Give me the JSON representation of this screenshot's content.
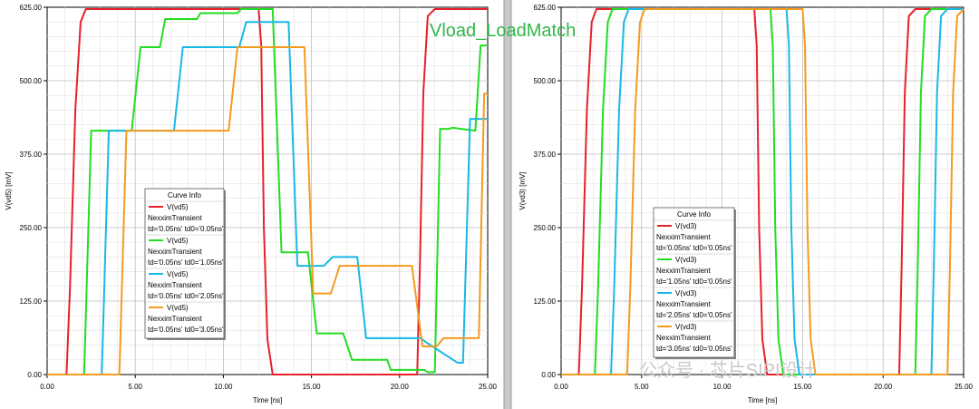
{
  "overlay_text": "Vload_LoadMatch",
  "watermark": "公众号 · 芯片SIPI设计",
  "chart_data": [
    {
      "type": "line",
      "xlabel": "Time [ns]",
      "ylabel": "V(vd5) [mV]",
      "xlim": [
        0,
        25
      ],
      "ylim": [
        0,
        625
      ],
      "x_ticks": [
        "0.00",
        "5.00",
        "10.00",
        "15.00",
        "20.00",
        "25.00"
      ],
      "y_ticks": [
        "0.00",
        "125.00",
        "250.00",
        "375.00",
        "500.00",
        "625.00"
      ],
      "grid": true,
      "legend": {
        "title": "Curve Info",
        "placement": "center-left",
        "entries": [
          {
            "lines": [
              "V(vd5)",
              "NexximTransient",
              "td='0.05ns' td0='0.05ns'"
            ],
            "color": "#e8202a"
          },
          {
            "lines": [
              "V(vd5)",
              "NexximTransient",
              "td='0.05ns' td0='1.05ns'"
            ],
            "color": "#22dd22"
          },
          {
            "lines": [
              "V(vd5)",
              "NexximTransient",
              "td='0.05ns' td0='2.05ns'"
            ],
            "color": "#18b8e8"
          },
          {
            "lines": [
              "V(vd5)",
              "NexximTransient",
              "td='0.05ns' td0='3.05ns'"
            ],
            "color": "#f39b1e"
          }
        ]
      },
      "series": [
        {
          "name": "V(vd5) td='0.05ns' td0='0.05ns'",
          "color": "#e8202a",
          "x": [
            0,
            1.1,
            1.3,
            1.6,
            1.9,
            2.2,
            12.0,
            12.15,
            12.3,
            12.5,
            12.8,
            21.0,
            21.15,
            21.35,
            21.6,
            22.0,
            25
          ],
          "y": [
            0,
            0,
            150,
            450,
            600,
            622,
            622,
            560,
            250,
            60,
            0,
            0,
            180,
            480,
            610,
            622,
            622
          ]
        },
        {
          "name": "V(vd5) td='0.05ns' td0='1.05ns'",
          "color": "#22dd22",
          "x": [
            0,
            2.1,
            2.5,
            4.8,
            5.3,
            6.4,
            6.7,
            8.5,
            8.7,
            10.8,
            11.0,
            12.8,
            13.3,
            14.8,
            15.3,
            16.8,
            17.3,
            19.3,
            19.5,
            21.4,
            21.6,
            22.0,
            22.3,
            22.8,
            23.0,
            24.3,
            24.6,
            25
          ],
          "y": [
            0,
            0,
            415,
            415,
            557,
            557,
            605,
            605,
            615,
            615,
            622,
            622,
            208,
            208,
            70,
            70,
            25,
            25,
            8,
            8,
            4,
            4,
            418,
            418,
            420,
            415,
            560,
            560
          ]
        },
        {
          "name": "V(vd5) td='0.05ns' td0='2.05ns'",
          "color": "#18b8e8",
          "x": [
            0,
            3.1,
            3.5,
            7.2,
            7.7,
            10.9,
            11.3,
            13.7,
            14.2,
            15.7,
            16.2,
            17.6,
            18.1,
            21.2,
            21.5,
            23.3,
            23.6,
            24.0,
            25
          ],
          "y": [
            0,
            0,
            415,
            415,
            557,
            557,
            600,
            600,
            185,
            185,
            200,
            200,
            62,
            62,
            55,
            20,
            20,
            435,
            435
          ]
        },
        {
          "name": "V(vd5) td='0.05ns' td0='3.05ns'",
          "color": "#f39b1e",
          "x": [
            0,
            4.1,
            4.5,
            10.3,
            10.8,
            14.6,
            15.1,
            16.1,
            16.6,
            20.7,
            21.3,
            22.1,
            22.5,
            23.1,
            23.4,
            24.5,
            24.8,
            25
          ],
          "y": [
            0,
            0,
            415,
            415,
            557,
            557,
            138,
            138,
            185,
            185,
            48,
            48,
            62,
            62,
            62,
            62,
            478,
            478
          ]
        }
      ]
    },
    {
      "type": "line",
      "xlabel": "Time [ns]",
      "ylabel": "V(vd3) [mV]",
      "xlim": [
        0,
        25
      ],
      "ylim": [
        0,
        625
      ],
      "x_ticks": [
        "0.00",
        "5.00",
        "10.00",
        "15.00",
        "20.00",
        "25.00"
      ],
      "y_ticks": [
        "0.00",
        "125.00",
        "250.00",
        "375.00",
        "500.00",
        "625.00"
      ],
      "grid": true,
      "legend": {
        "title": "Curve Info",
        "placement": "center",
        "entries": [
          {
            "lines": [
              "V(vd3)",
              "NexximTransient",
              "td='0.05ns' td0='0.05ns'"
            ],
            "color": "#e8202a"
          },
          {
            "lines": [
              "V(vd3)",
              "NexximTransient",
              "td='1.05ns' td0='0.05ns'"
            ],
            "color": "#22dd22"
          },
          {
            "lines": [
              "V(vd3)",
              "NexximTransient",
              "td='2.05ns' td0='0.05ns'"
            ],
            "color": "#18b8e8"
          },
          {
            "lines": [
              "V(vd3)",
              "NexximTransient",
              "td='3.05ns' td0='0.05ns'"
            ],
            "color": "#f39b1e"
          }
        ]
      },
      "series": [
        {
          "name": "V(vd3) td='0.05ns' td0='0.05ns'",
          "color": "#e8202a",
          "x": [
            0,
            1.1,
            1.3,
            1.6,
            1.9,
            2.2,
            12.0,
            12.15,
            12.3,
            12.5,
            12.8,
            21.0,
            21.15,
            21.35,
            21.6,
            22.0,
            25
          ],
          "y": [
            0,
            0,
            150,
            450,
            600,
            622,
            622,
            560,
            250,
            60,
            0,
            0,
            180,
            480,
            610,
            622,
            622
          ]
        },
        {
          "name": "V(vd3) td='1.05ns' td0='0.05ns'",
          "color": "#22dd22",
          "x": [
            0,
            2.1,
            2.3,
            2.6,
            2.9,
            3.2,
            13.0,
            13.15,
            13.3,
            13.5,
            13.8,
            22.0,
            22.15,
            22.35,
            22.6,
            23.0,
            25
          ],
          "y": [
            0,
            0,
            150,
            450,
            600,
            622,
            622,
            560,
            250,
            60,
            0,
            0,
            180,
            480,
            610,
            622,
            622
          ]
        },
        {
          "name": "V(vd3) td='2.05ns' td0='0.05ns'",
          "color": "#18b8e8",
          "x": [
            0,
            3.1,
            3.3,
            3.6,
            3.9,
            4.2,
            14.0,
            14.15,
            14.3,
            14.5,
            14.8,
            23.0,
            23.15,
            23.35,
            23.6,
            24.0,
            25
          ],
          "y": [
            0,
            0,
            150,
            450,
            600,
            622,
            622,
            560,
            250,
            60,
            0,
            0,
            180,
            480,
            610,
            622,
            622
          ]
        },
        {
          "name": "V(vd3) td='3.05ns' td0='0.05ns'",
          "color": "#f39b1e",
          "x": [
            0,
            4.1,
            4.3,
            4.6,
            4.9,
            5.2,
            15.0,
            15.15,
            15.3,
            15.5,
            15.8,
            24.0,
            24.15,
            24.35,
            24.6,
            25.0
          ],
          "y": [
            0,
            0,
            150,
            450,
            600,
            622,
            622,
            560,
            250,
            60,
            0,
            0,
            180,
            480,
            610,
            622
          ]
        }
      ]
    }
  ]
}
